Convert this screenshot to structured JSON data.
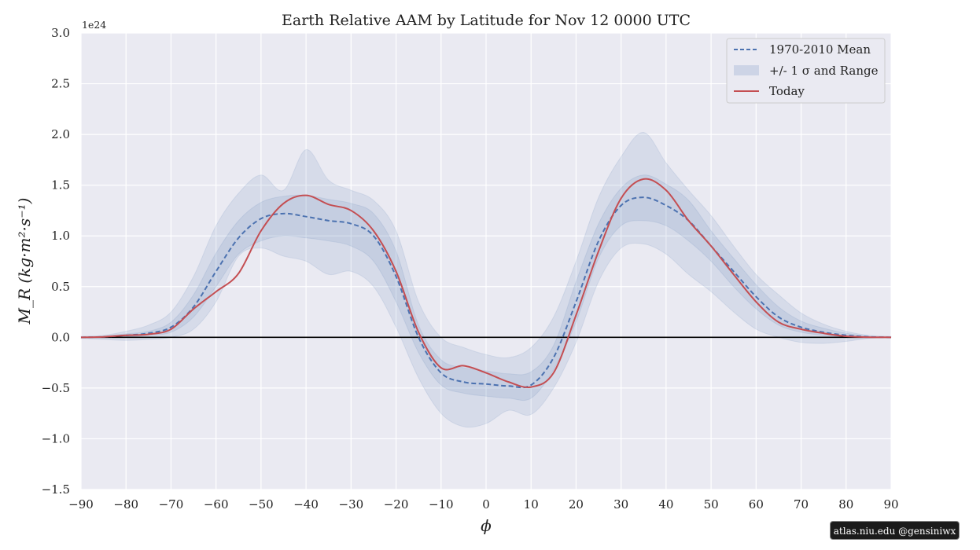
{
  "chart_data": {
    "type": "area",
    "title": "Earth Relative AAM by Latitude for Nov 12 0000 UTC",
    "xlabel": "ϕ",
    "ylabel": "M_R (kg·m²·s⁻¹)",
    "y_offset_text": "1e24",
    "xlim": [
      -90,
      90
    ],
    "ylim": [
      -1.5,
      3.0
    ],
    "x_ticks": [
      -90,
      -80,
      -70,
      -60,
      -50,
      -40,
      -30,
      -20,
      -10,
      0,
      10,
      20,
      30,
      40,
      50,
      60,
      70,
      80,
      90
    ],
    "x_tick_labels": [
      "−90",
      "−80",
      "−70",
      "−60",
      "−50",
      "−40",
      "−30",
      "−20",
      "−10",
      "0",
      "10",
      "20",
      "30",
      "40",
      "50",
      "60",
      "70",
      "80",
      "90"
    ],
    "y_ticks": [
      -1.5,
      -1.0,
      -0.5,
      0.0,
      0.5,
      1.0,
      1.5,
      2.0,
      2.5,
      3.0
    ],
    "y_tick_labels": [
      "−1.5",
      "−1.0",
      "−0.5",
      "0.0",
      "0.5",
      "1.0",
      "1.5",
      "2.0",
      "2.5",
      "3.0"
    ],
    "grid": true,
    "legend_position": "top-right",
    "legend": [
      "1970-2010 Mean",
      "+/- 1 σ and Range",
      "Today"
    ],
    "x": [
      -90,
      -85,
      -80,
      -75,
      -70,
      -65,
      -60,
      -55,
      -50,
      -45,
      -40,
      -35,
      -30,
      -25,
      -20,
      -15,
      -10,
      -5,
      0,
      5,
      10,
      15,
      20,
      25,
      30,
      35,
      40,
      45,
      50,
      55,
      60,
      65,
      70,
      75,
      80,
      85,
      90
    ],
    "series": [
      {
        "name": "1970-2010 Mean",
        "style": "dashed",
        "color": "#4c72b0",
        "values": [
          0.0,
          0.005,
          0.02,
          0.04,
          0.1,
          0.3,
          0.65,
          0.98,
          1.17,
          1.22,
          1.19,
          1.15,
          1.12,
          1.0,
          0.6,
          0.0,
          -0.35,
          -0.44,
          -0.46,
          -0.48,
          -0.47,
          -0.2,
          0.35,
          0.95,
          1.3,
          1.38,
          1.3,
          1.15,
          0.9,
          0.65,
          0.4,
          0.2,
          0.1,
          0.05,
          0.02,
          0.005,
          0.0
        ]
      },
      {
        "name": "Today",
        "style": "solid",
        "color": "#c44e52",
        "values": [
          0.0,
          0.005,
          0.02,
          0.03,
          0.08,
          0.28,
          0.45,
          0.63,
          1.05,
          1.32,
          1.4,
          1.31,
          1.25,
          1.05,
          0.65,
          0.05,
          -0.3,
          -0.28,
          -0.35,
          -0.44,
          -0.49,
          -0.35,
          0.22,
          0.85,
          1.37,
          1.56,
          1.45,
          1.15,
          0.9,
          0.62,
          0.35,
          0.15,
          0.08,
          0.04,
          0.01,
          0.002,
          0.0
        ]
      }
    ],
    "sigma_band": {
      "name": "+/- 1 σ and Range",
      "lower": [
        0.0,
        0.0,
        0.005,
        0.02,
        0.05,
        0.2,
        0.5,
        0.82,
        0.95,
        1.0,
        0.98,
        0.95,
        0.9,
        0.75,
        0.35,
        -0.15,
        -0.47,
        -0.55,
        -0.58,
        -0.6,
        -0.6,
        -0.32,
        0.15,
        0.78,
        1.1,
        1.15,
        1.1,
        0.95,
        0.75,
        0.5,
        0.28,
        0.12,
        0.05,
        0.02,
        0.005,
        0.0,
        0.0
      ],
      "upper": [
        0.0,
        0.01,
        0.035,
        0.06,
        0.15,
        0.42,
        0.83,
        1.15,
        1.33,
        1.39,
        1.4,
        1.36,
        1.32,
        1.22,
        0.85,
        0.12,
        -0.22,
        -0.3,
        -0.33,
        -0.36,
        -0.34,
        -0.08,
        0.55,
        1.12,
        1.47,
        1.6,
        1.51,
        1.35,
        1.05,
        0.78,
        0.52,
        0.3,
        0.16,
        0.09,
        0.04,
        0.01,
        0.0
      ]
    },
    "range_band": {
      "lower": [
        -0.01,
        -0.02,
        -0.03,
        -0.02,
        0.0,
        0.08,
        0.35,
        0.8,
        0.88,
        0.8,
        0.75,
        0.62,
        0.65,
        0.5,
        0.1,
        -0.4,
        -0.75,
        -0.88,
        -0.85,
        -0.72,
        -0.76,
        -0.5,
        -0.05,
        0.55,
        0.88,
        0.92,
        0.82,
        0.62,
        0.45,
        0.25,
        0.08,
        0.0,
        -0.05,
        -0.06,
        -0.04,
        -0.01,
        0.0
      ],
      "upper": [
        0.01,
        0.02,
        0.06,
        0.12,
        0.25,
        0.6,
        1.1,
        1.42,
        1.6,
        1.45,
        1.85,
        1.55,
        1.45,
        1.35,
        1.05,
        0.35,
        0.0,
        -0.1,
        -0.17,
        -0.2,
        -0.1,
        0.2,
        0.75,
        1.38,
        1.78,
        2.02,
        1.72,
        1.45,
        1.2,
        0.9,
        0.62,
        0.42,
        0.24,
        0.13,
        0.06,
        0.02,
        0.01
      ]
    },
    "zero_line": 0.0
  },
  "watermark": "atlas.niu.edu  @gensiniwx"
}
